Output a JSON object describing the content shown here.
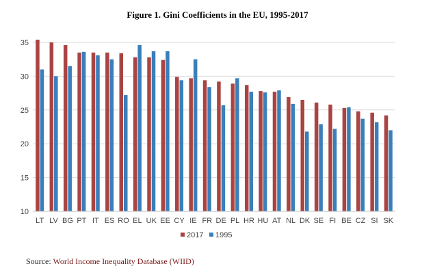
{
  "title": "Figure 1. Gini Coefficients in the EU, 1995-2017",
  "source": {
    "prefix": "Source:",
    "name": "World Income Inequality Database (WIID)"
  },
  "colors": {
    "2017": "#a94443",
    "1995": "#3a7fb9",
    "grid": "#d9d9d9"
  },
  "chart_data": {
    "type": "bar",
    "categories": [
      "LT",
      "LV",
      "BG",
      "PT",
      "IT",
      "ES",
      "RO",
      "EL",
      "UK",
      "EE",
      "CY",
      "IE",
      "FR",
      "DE",
      "PL",
      "HR",
      "HU",
      "AT",
      "NL",
      "DK",
      "SE",
      "FI",
      "BE",
      "CZ",
      "SI",
      "SK"
    ],
    "series": [
      {
        "name": "2017",
        "values": [
          35.4,
          35.0,
          34.6,
          33.5,
          33.5,
          33.5,
          33.4,
          32.8,
          32.8,
          32.4,
          29.9,
          29.7,
          29.4,
          29.2,
          28.9,
          28.7,
          27.8,
          27.7,
          26.9,
          26.5,
          26.1,
          25.8,
          25.3,
          24.8,
          24.6,
          24.2
        ]
      },
      {
        "name": "1995",
        "values": [
          31.0,
          30.0,
          31.5,
          33.6,
          33.1,
          32.5,
          27.2,
          34.6,
          33.7,
          33.7,
          29.4,
          32.5,
          28.4,
          25.7,
          29.7,
          27.7,
          27.6,
          27.9,
          25.9,
          21.8,
          22.9,
          22.2,
          25.4,
          23.7,
          23.2,
          22.0
        ]
      }
    ],
    "ylim": [
      10,
      35
    ],
    "yticks": [
      10,
      15,
      20,
      25,
      30,
      35
    ],
    "grid": true,
    "legend_position": "bottom-center"
  }
}
